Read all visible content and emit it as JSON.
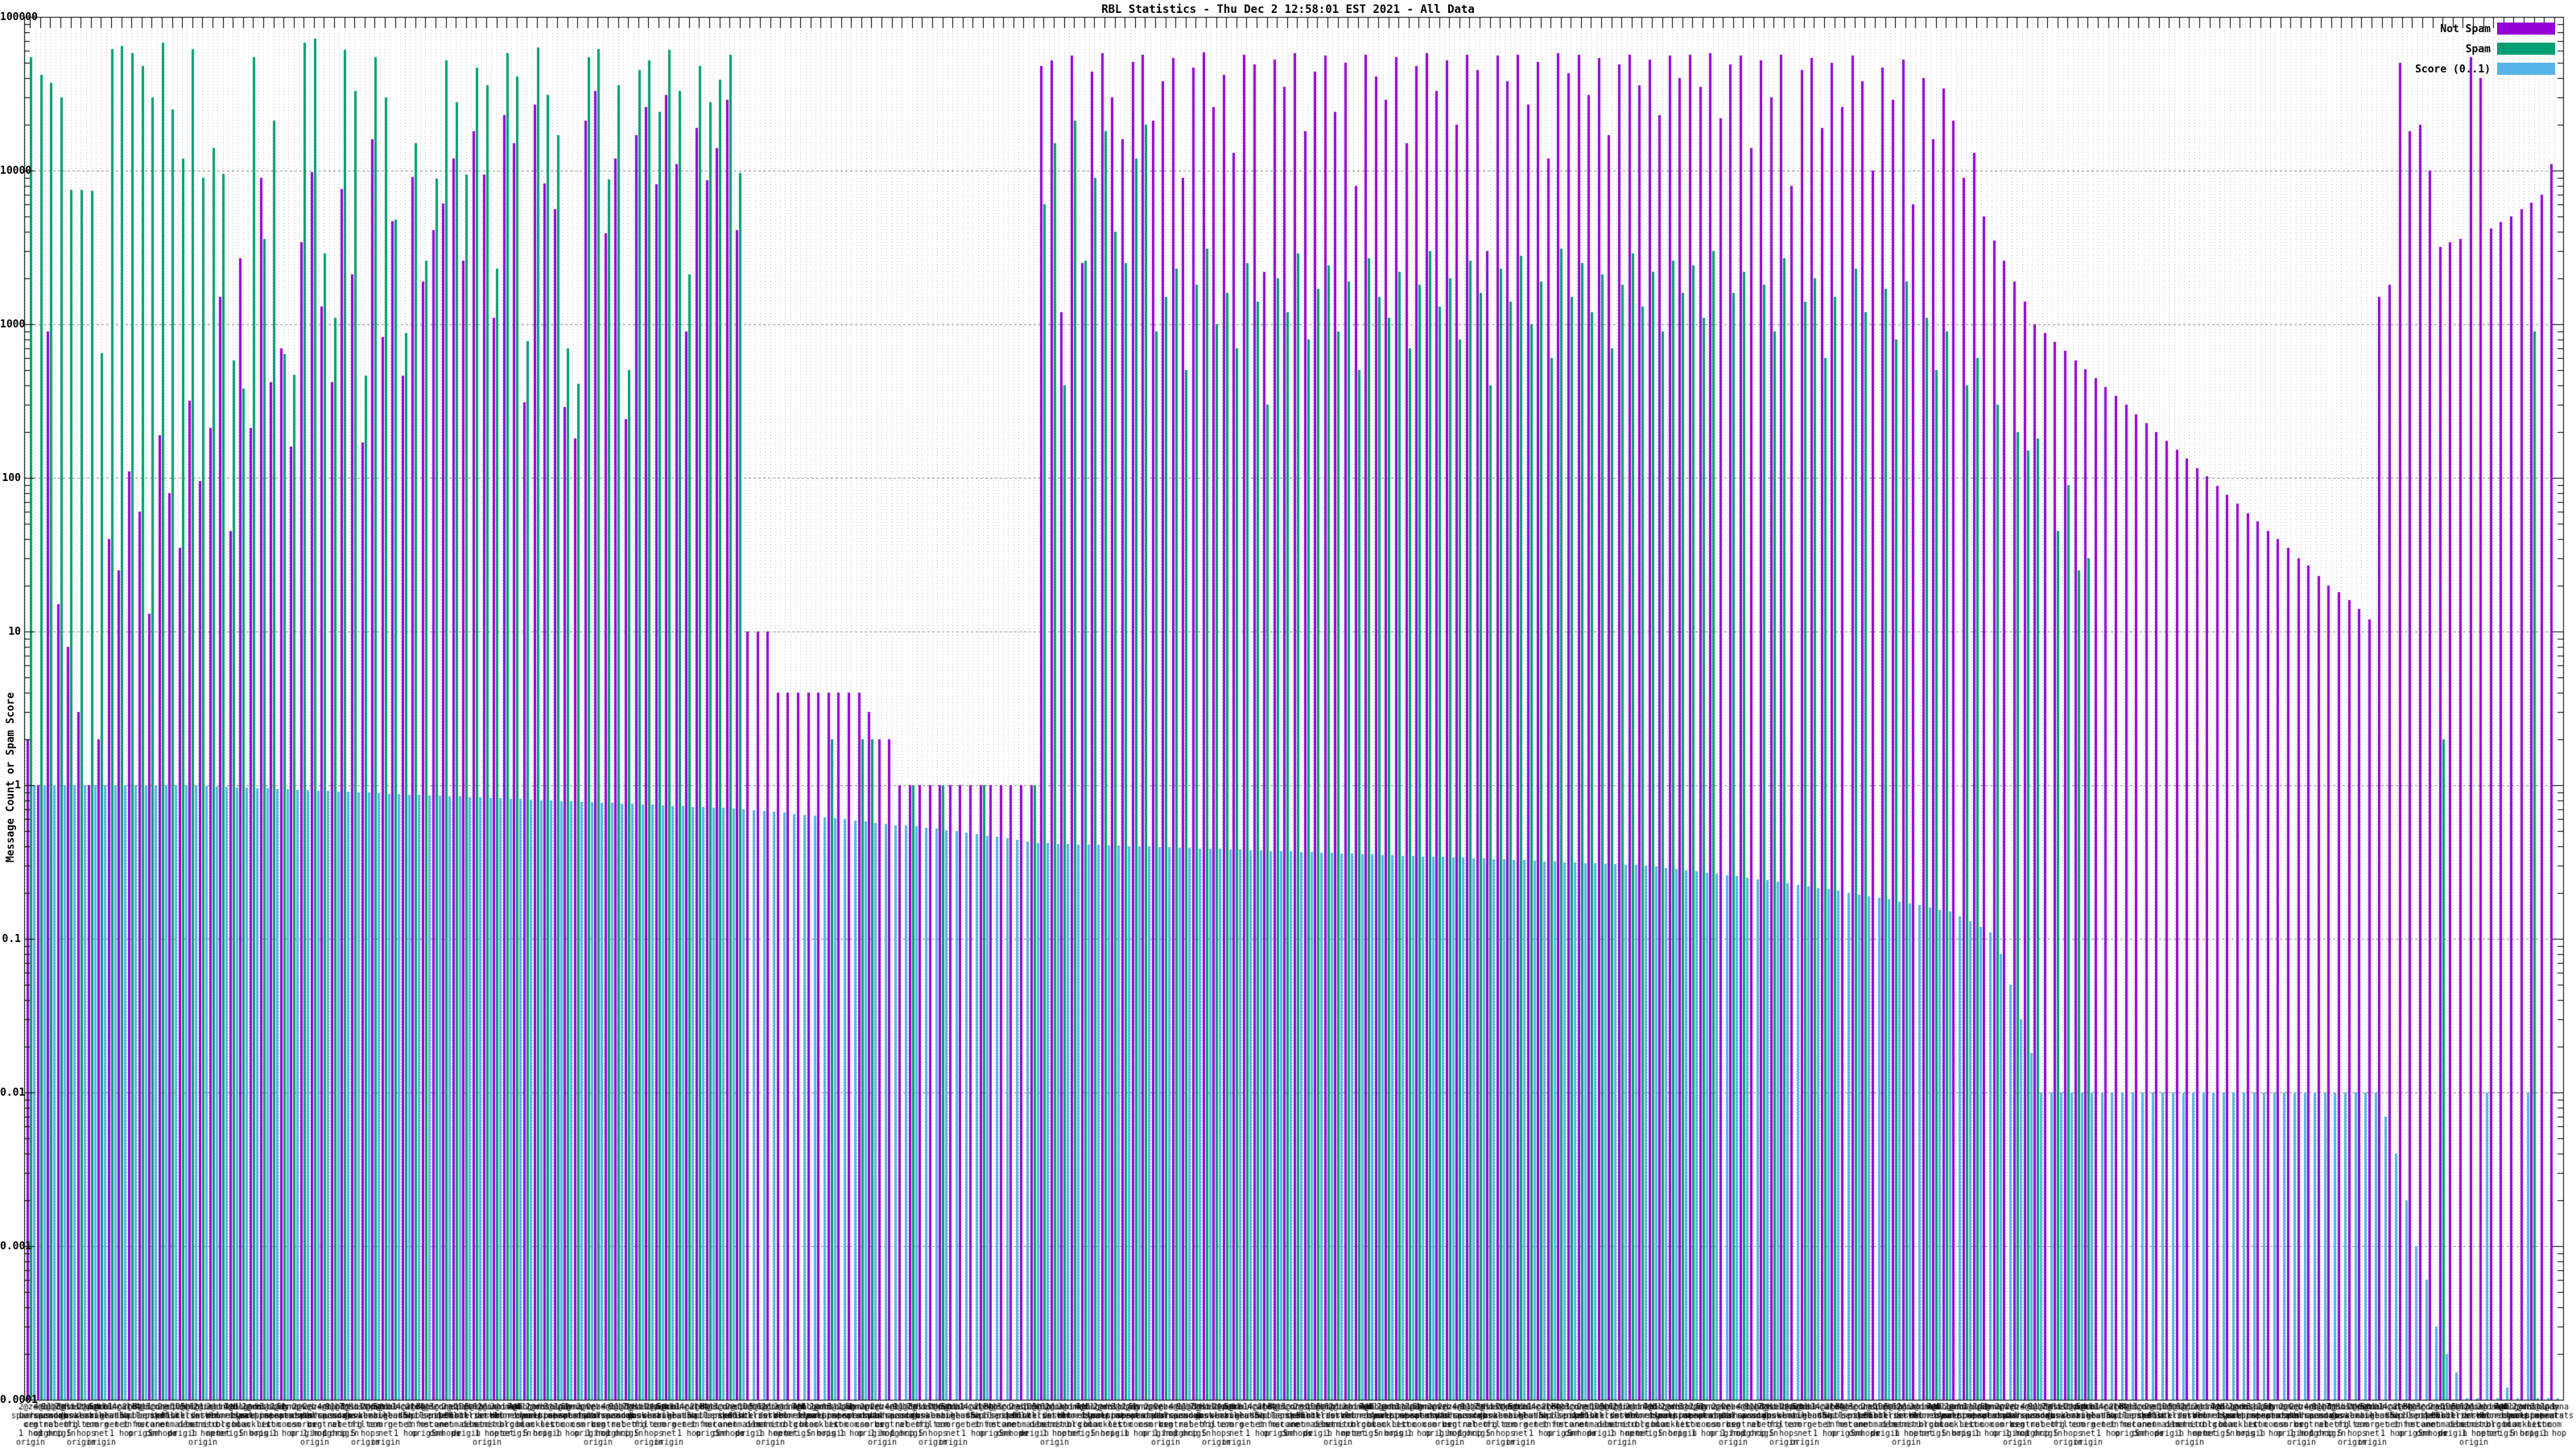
{
  "title": "RBL Statistics - Thu Dec  2 12:58:01 EST 2021 - All Data",
  "y_axis": {
    "label": "Message Count or Spam Score",
    "ticks": [
      "100000",
      "10000",
      "1000",
      "100",
      "10",
      "1",
      "0.1",
      "0.01",
      "0.001",
      "0.0001"
    ]
  },
  "legend": {
    "items": [
      {
        "label": "Not Spam",
        "color": "#9400d3"
      },
      {
        "label": "Spam",
        "color": "#009e73"
      },
      {
        "label": "Score (0..1)",
        "color": "#56b4e9"
      }
    ]
  },
  "colors": {
    "not_spam": "#9400d3",
    "spam": "#009e73",
    "score": "#56b4e9",
    "grid_minor": "#b4b4b4",
    "grid_major": "#909090",
    "axis": "#000000"
  },
  "chart_data": {
    "type": "bar",
    "yscale": "log",
    "ylim": [
      0.0001,
      100000
    ],
    "n_groups": 250,
    "legend_position": "top-right",
    "grid": true,
    "series": [
      {
        "name": "Not Spam",
        "color": "#9400d3",
        "values": [
          2,
          1,
          900,
          15,
          8,
          3,
          1,
          2,
          40,
          25,
          110,
          60,
          13,
          190,
          80,
          35,
          320,
          95,
          210,
          1500,
          45,
          2700,
          210,
          9000,
          420,
          700,
          160,
          3400,
          9800,
          1300,
          420,
          7600,
          2100,
          170,
          16000,
          820,
          4700,
          460,
          9100,
          1900,
          4100,
          6100,
          12000,
          2600,
          18000,
          9400,
          1100,
          23000,
          15000,
          310,
          27000,
          8200,
          5600,
          290,
          180,
          21000,
          33000,
          3900,
          12000,
          240,
          17000,
          26000,
          8100,
          31000,
          11000,
          900,
          19000,
          8700,
          14000,
          29000,
          4100,
          10,
          10,
          10,
          4,
          4,
          4,
          4,
          4,
          4,
          4,
          4,
          4,
          3,
          2,
          2,
          1,
          1,
          1,
          1,
          1,
          1,
          1,
          1,
          1,
          1,
          1,
          1,
          1,
          1,
          48000,
          52000,
          1200,
          56000,
          2500,
          44000,
          58000,
          30000,
          16000,
          51000,
          57000,
          21000,
          38000,
          54000,
          9000,
          47000,
          59000,
          26000,
          42000,
          13000,
          57000,
          49000,
          2200,
          53000,
          35000,
          58000,
          18000,
          44000,
          56000,
          24000,
          50000,
          8000,
          57000,
          41000,
          29000,
          55000,
          15000,
          48000,
          58000,
          33000,
          52000,
          20000,
          57000,
          45000,
          3000,
          56000,
          38000,
          57000,
          27000,
          51000,
          12000,
          58000,
          43000,
          57000,
          31000,
          54000,
          17000,
          49000,
          57000,
          36000,
          53000,
          23000,
          56000,
          40000,
          57000,
          35000,
          58000,
          22000,
          49000,
          56000,
          14000,
          52000,
          30000,
          57000,
          8000,
          45000,
          54000,
          19000,
          50000,
          26000,
          56000,
          38000,
          10000,
          47000,
          29000,
          53000,
          6000,
          40000,
          16000,
          34000,
          21000,
          9000,
          13000,
          5000,
          3500,
          2600,
          1900,
          1400,
          1000,
          874,
          764,
          668,
          584,
          510,
          446,
          390,
          341,
          298,
          260,
          228,
          199,
          174,
          152,
          133,
          116,
          102,
          89,
          78,
          68,
          59,
          52,
          45,
          40,
          35,
          30,
          27,
          23,
          20,
          18,
          16,
          14,
          12,
          1500,
          1800,
          50000,
          18000,
          20000,
          10000,
          3200,
          3400,
          3600,
          55000,
          40000,
          4200,
          4600,
          5000,
          5600,
          6200,
          7000,
          11000
        ]
      },
      {
        "name": "Spam",
        "color": "#009e73",
        "values": [
          55000,
          42000,
          37000,
          30000,
          7500,
          7500,
          7400,
          650,
          62000,
          65000,
          58000,
          48000,
          30000,
          68000,
          25000,
          12000,
          62000,
          9000,
          14000,
          9500,
          580,
          380,
          55000,
          3600,
          21000,
          640,
          470,
          68000,
          72000,
          2900,
          1100,
          61000,
          33000,
          460,
          55000,
          30000,
          4800,
          880,
          15000,
          2600,
          8900,
          52000,
          28000,
          9400,
          47000,
          36000,
          2300,
          58000,
          41000,
          780,
          63000,
          31000,
          17000,
          700,
          410,
          55000,
          62000,
          8800,
          36000,
          500,
          45000,
          52000,
          24000,
          61000,
          33000,
          2100,
          48000,
          28000,
          39000,
          57000,
          9600,
          0,
          0,
          0,
          0,
          0,
          0,
          0,
          0,
          2,
          0,
          0,
          2,
          2,
          0,
          0,
          0,
          1,
          0,
          0,
          1,
          0,
          0,
          0,
          1,
          0,
          0,
          0,
          0,
          1,
          6000,
          15000,
          400,
          21000,
          2600,
          9000,
          18000,
          4000,
          2500,
          12000,
          20000,
          900,
          1500,
          2300,
          500,
          1800,
          3100,
          1000,
          1600,
          700,
          2500,
          1400,
          300,
          2000,
          1200,
          2900,
          800,
          1700,
          2400,
          900,
          1900,
          500,
          2700,
          1500,
          1100,
          2200,
          700,
          1800,
          3000,
          1300,
          2000,
          800,
          2600,
          1600,
          400,
          2300,
          1400,
          2800,
          1000,
          1900,
          600,
          3100,
          1500,
          2500,
          1200,
          2100,
          700,
          1800,
          2900,
          1300,
          2200,
          900,
          2600,
          1600,
          2400,
          1100,
          3000,
          0,
          1600,
          2200,
          0,
          1800,
          900,
          2700,
          0,
          1400,
          2000,
          600,
          1500,
          0,
          2300,
          1200,
          0,
          1700,
          800,
          1900,
          0,
          1100,
          500,
          900,
          0,
          400,
          600,
          0,
          300,
          0,
          200,
          150,
          180,
          0,
          45,
          90,
          25,
          30,
          0,
          0,
          0,
          0,
          0,
          0,
          0,
          0,
          0,
          0,
          0,
          0,
          0,
          0,
          0,
          0,
          0,
          0,
          0,
          0,
          0,
          0,
          0,
          0,
          0,
          0,
          0,
          0,
          0,
          0,
          0,
          0,
          0,
          0,
          2,
          0,
          0,
          0,
          0,
          0,
          0,
          0,
          0,
          900,
          0,
          0
        ]
      },
      {
        "name": "Score (0..1)",
        "color": "#56b4e9",
        "values": [
          1,
          1,
          1,
          1,
          1,
          1,
          1,
          1,
          1,
          1,
          1,
          1,
          1,
          1,
          1,
          1,
          0.994,
          0.988,
          0.982,
          0.976,
          0.97,
          0.964,
          0.958,
          0.952,
          0.946,
          0.94,
          0.934,
          0.928,
          0.922,
          0.916,
          0.91,
          0.904,
          0.898,
          0.892,
          0.886,
          0.88,
          0.874,
          0.868,
          0.862,
          0.856,
          0.85,
          0.845,
          0.84,
          0.835,
          0.83,
          0.825,
          0.82,
          0.815,
          0.81,
          0.805,
          0.8,
          0.795,
          0.79,
          0.785,
          0.78,
          0.775,
          0.77,
          0.765,
          0.76,
          0.755,
          0.75,
          0.745,
          0.74,
          0.735,
          0.73,
          0.725,
          0.72,
          0.715,
          0.71,
          0.705,
          0.7,
          0.69,
          0.68,
          0.67,
          0.66,
          0.65,
          0.64,
          0.63,
          0.62,
          0.61,
          0.6,
          0.59,
          0.58,
          0.57,
          0.56,
          0.55,
          0.545,
          0.54,
          0.53,
          0.52,
          0.51,
          0.5,
          0.49,
          0.48,
          0.47,
          0.46,
          0.45,
          0.44,
          0.43,
          0.42,
          0.418,
          0.416,
          0.414,
          0.412,
          0.41,
          0.408,
          0.406,
          0.404,
          0.402,
          0.4,
          0.398,
          0.396,
          0.394,
          0.392,
          0.39,
          0.388,
          0.386,
          0.384,
          0.382,
          0.38,
          0.378,
          0.376,
          0.374,
          0.372,
          0.37,
          0.368,
          0.366,
          0.364,
          0.362,
          0.36,
          0.358,
          0.356,
          0.354,
          0.352,
          0.35,
          0.348,
          0.346,
          0.344,
          0.342,
          0.34,
          0.338,
          0.336,
          0.334,
          0.332,
          0.33,
          0.328,
          0.326,
          0.324,
          0.322,
          0.32,
          0.318,
          0.316,
          0.314,
          0.312,
          0.31,
          0.308,
          0.306,
          0.304,
          0.302,
          0.3,
          0.295,
          0.29,
          0.285,
          0.28,
          0.275,
          0.27,
          0.265,
          0.26,
          0.255,
          0.25,
          0.245,
          0.24,
          0.235,
          0.23,
          0.225,
          0.22,
          0.215,
          0.21,
          0.205,
          0.2,
          0.195,
          0.19,
          0.185,
          0.18,
          0.175,
          0.17,
          0.165,
          0.16,
          0.155,
          0.15,
          0.14,
          0.13,
          0.12,
          0.11,
          0.08,
          0.05,
          0.03,
          0.018,
          0.01,
          0.01,
          0.01,
          0.01,
          0.01,
          0.01,
          0.01,
          0.01,
          0.01,
          0.01,
          0.01,
          0.01,
          0.01,
          0.01,
          0.01,
          0.01,
          0.01,
          0.01,
          0.01,
          0.01,
          0.01,
          0.01,
          0.01,
          0.01,
          0.01,
          0.01,
          0.01,
          0.01,
          0.01,
          0.01,
          0.01,
          0.01,
          0.01,
          0.01,
          0.007,
          0.004,
          0.002,
          0.001,
          0.0006,
          0.0003,
          0.0002,
          0.00015,
          0.0001,
          0.0001,
          0.01,
          0.0001,
          0.00012,
          0.0001,
          0.01,
          0.0001,
          0.0001,
          0.0001
        ]
      }
    ],
    "xlabel_pool": [
      "2@zen\nspamhaus\norg\n1 hop\norigin",
      "4@b\nbarracuda\ncentral\norg",
      "9@bl\nspamcop\nnet\n1 hop",
      "11@dnsbl\nsorbs\nnet\norigin",
      "3@list\ndnswl\norg",
      "7@hostkarma\njunkemail\nfilter\n5 hops\norigin",
      "2@psbl\nsurriel\ncom",
      "5@cbl\nabuseat\norg\nnet\norigin",
      "6@truncate\ngbudb\nnet",
      "14@all\ns5h\nnet\n1 hop",
      "2@db\nwpbl\ninfo",
      "8@bl\nmailspike\nnet\norigin",
      "4@score\nsender\nscore\ncom",
      "3@dnsbl\nspfbl\nnet\n5 hops",
      "2@spam\ndnsbl\nanonmails\nde",
      "10@bl\nblocklist\nde\norigin",
      "5@rbl\ninterserver\nnet",
      "2@ix\ndnsbl\nmanitu\n1 hop\norigin",
      "6@combined\nrbl\nmsrbl\nnet",
      "2@dnsbl\ndronebl\norg\nnet",
      "7@bl\nnordspam\ncom\norigin",
      "4@bogons\ncymru\ncom",
      "2@rbl\nrealtime\nblacklist\n5 hops",
      "1@dnsbl-1\nuceprotect\nnet\norigin",
      "3@spam\nspamrats\ncom",
      "2@dyna\nspamrats\ncom\n1 hop",
      "5@noptr\nspamrats\ncom",
      "2@web\ndnsbl\nsorbs\norigin"
    ]
  }
}
